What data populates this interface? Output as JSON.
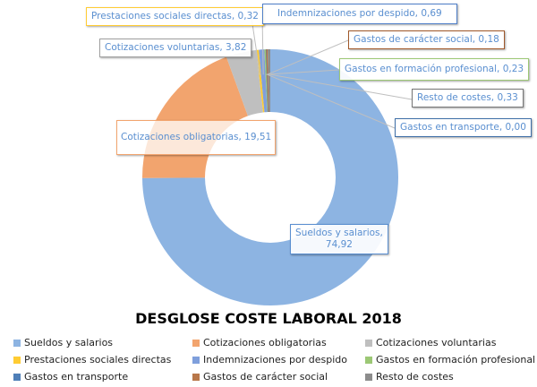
{
  "chart_data": {
    "type": "pie",
    "variant": "donut",
    "title": "DESGLOSE COSTE LABORAL 2018",
    "legend_position": "bottom",
    "categories": [
      "Sueldos y salarios",
      "Cotizaciones obligatorias",
      "Cotizaciones voluntarias",
      "Prestaciones sociales directas",
      "Indemnizaciones por despido",
      "Gastos en formación profesional",
      "Gastos en transporte",
      "Gastos de carácter social",
      "Resto de costes"
    ],
    "values": [
      74.92,
      19.51,
      3.82,
      0.32,
      0.69,
      0.23,
      0.0,
      0.18,
      0.33
    ],
    "value_labels": [
      "74,92",
      "19,51",
      "3,82",
      "0,32",
      "0,69",
      "0,23",
      "0,00",
      "0,18",
      "0,33"
    ],
    "data_labels": [
      "Sueldos y salarios,",
      "Cotizaciones obligatorias, 19,51",
      "Cotizaciones voluntarias, 3,82",
      "Prestaciones sociales directas, 0,32",
      "Indemnizaciones por despido, 0,69",
      "Gastos en formación profesional, 0,23",
      "Gastos en transporte, 0,00",
      "Gastos de carácter social, 0,18",
      "Resto de costes, 0,33"
    ],
    "colors": [
      "#8db4e2",
      "#f2a46e",
      "#bfbfbf",
      "#ffcc33",
      "#7f9fdc",
      "#9cc875",
      "#4f7fb8",
      "#b8774a",
      "#8c8c8c"
    ]
  }
}
